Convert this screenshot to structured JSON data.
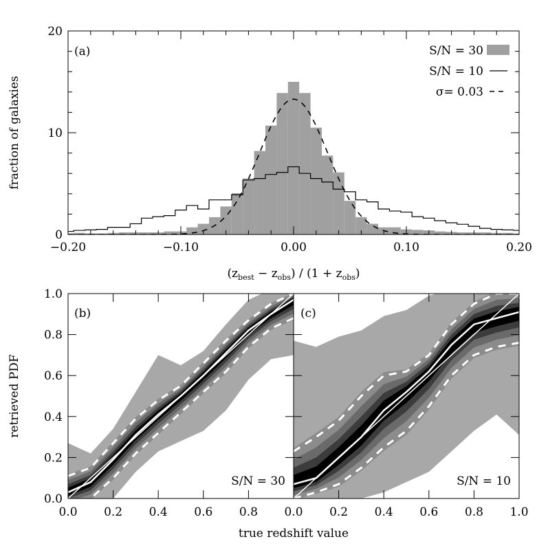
{
  "chart_data": [
    {
      "type": "bar",
      "panel_label": "(a)",
      "ylabel": "fraction of galaxies",
      "xlabel_parts": [
        "(z",
        "best",
        " − z",
        "obs",
        ") / (1 + z",
        "obs",
        ")"
      ],
      "xlim": [
        -0.2,
        0.2
      ],
      "ylim": [
        0,
        20
      ],
      "xticks": [
        "-0.20",
        "-0.10",
        "0.00",
        "0.10",
        "0.20"
      ],
      "xtick_values": [
        -0.2,
        -0.1,
        0.0,
        0.1,
        0.2
      ],
      "yticks": [
        "0",
        "10",
        "20"
      ],
      "ytick_values": [
        0,
        10,
        20
      ],
      "bin_width": 0.01,
      "bin_centers": [
        -0.2,
        -0.19,
        -0.18,
        -0.17,
        -0.16,
        -0.15,
        -0.14,
        -0.13,
        -0.12,
        -0.11,
        -0.1,
        -0.09,
        -0.08,
        -0.07,
        -0.06,
        -0.05,
        -0.04,
        -0.03,
        -0.02,
        -0.01,
        0.0,
        0.01,
        0.02,
        0.03,
        0.04,
        0.05,
        0.06,
        0.07,
        0.08,
        0.09,
        0.1,
        0.11,
        0.12,
        0.13,
        0.14,
        0.15,
        0.16,
        0.17,
        0.18,
        0.19,
        0.2
      ],
      "legend_position": "top-right",
      "series": [
        {
          "name": "S/N = 30",
          "style": "filled",
          "color": "#a0a0a0",
          "values": [
            0.1,
            0.15,
            0.1,
            0.1,
            0.15,
            0.2,
            0.2,
            0.2,
            0.2,
            0.3,
            0.3,
            0.7,
            1.05,
            1.7,
            2.75,
            4.05,
            5.5,
            8.2,
            10.7,
            13.9,
            15.0,
            13.9,
            10.5,
            7.75,
            6.1,
            3.3,
            1.7,
            1.05,
            0.7,
            0.7,
            0.5,
            0.45,
            0.4,
            0.3,
            0.25,
            0.2,
            0.2,
            0.2,
            0.15,
            0.15,
            0.1
          ]
        },
        {
          "name": "S/N = 10",
          "style": "step",
          "color": "#000000",
          "values": [
            0.3,
            0.4,
            0.45,
            0.5,
            0.7,
            0.7,
            1.05,
            1.6,
            1.75,
            1.85,
            2.4,
            2.85,
            2.5,
            3.4,
            3.4,
            3.9,
            5.35,
            5.5,
            5.9,
            6.1,
            6.65,
            6.0,
            5.5,
            5.15,
            4.45,
            4.2,
            3.4,
            3.2,
            2.5,
            2.3,
            2.2,
            1.75,
            1.6,
            1.35,
            1.15,
            1.0,
            0.8,
            0.6,
            0.5,
            0.45,
            0.4
          ]
        },
        {
          "name": "σ= 0.03",
          "style": "dashed",
          "color": "#000000",
          "gaussian_sigma": 0.03,
          "peak": 13.3
        }
      ]
    },
    {
      "type": "area",
      "panel_label": "(b)",
      "annotation": "S/N = 30",
      "ylabel": "retrieved PDF",
      "xlabel": "true redshift value",
      "xlim": [
        0,
        1
      ],
      "ylim": [
        0,
        1
      ],
      "xticks": [
        "0.0",
        "0.2",
        "0.4",
        "0.6",
        "0.8"
      ],
      "yticks": [
        "0.0",
        "0.2",
        "0.4",
        "0.6",
        "0.8",
        "1.0"
      ],
      "x": [
        0,
        0.1,
        0.2,
        0.3,
        0.4,
        0.5,
        0.6,
        0.7,
        0.8,
        0.9,
        1.0
      ],
      "outer_lo": [
        0,
        0,
        0.02,
        0.15,
        0.25,
        0.3,
        0.35,
        0.45,
        0.6,
        0.7,
        0.72
      ],
      "outer_hi": [
        0.25,
        0.2,
        0.32,
        0.5,
        0.68,
        0.63,
        0.7,
        0.83,
        0.95,
        1.0,
        1.0
      ],
      "dashed_lo": [
        -0.03,
        0.0,
        0.1,
        0.22,
        0.32,
        0.42,
        0.52,
        0.62,
        0.74,
        0.83,
        0.88
      ],
      "dashed_hi": [
        0.11,
        0.15,
        0.27,
        0.39,
        0.48,
        0.55,
        0.66,
        0.77,
        0.87,
        0.95,
        1.0
      ],
      "median": [
        0.03,
        0.08,
        0.19,
        0.31,
        0.41,
        0.5,
        0.6,
        0.71,
        0.82,
        0.9,
        0.97
      ],
      "colors": {
        "outer": "#a8a8a8",
        "band1": "#8c8c8c",
        "band2": "#6a6a6a",
        "band3": "#3c3c3c",
        "core": "#000000"
      }
    },
    {
      "type": "area",
      "panel_label": "(c)",
      "annotation": "S/N = 10",
      "xlabel": "true redshift value",
      "xlim": [
        0,
        1
      ],
      "ylim": [
        0,
        1
      ],
      "xticks": [
        "0.0",
        "0.2",
        "0.4",
        "0.6",
        "0.8",
        "1.0"
      ],
      "x": [
        0,
        0.1,
        0.2,
        0.3,
        0.4,
        0.5,
        0.6,
        0.7,
        0.8,
        0.9,
        1.0
      ],
      "outer_lo": [
        0,
        0,
        0,
        0.02,
        0.05,
        0.1,
        0.15,
        0.25,
        0.35,
        0.43,
        0.33
      ],
      "outer_hi": [
        0.75,
        0.72,
        0.77,
        0.8,
        0.87,
        0.9,
        0.97,
        1.0,
        1.0,
        1.0,
        1.0
      ],
      "dashed_lo": [
        0.0,
        0.03,
        0.07,
        0.15,
        0.25,
        0.33,
        0.45,
        0.6,
        0.7,
        0.74,
        0.76
      ],
      "dashed_hi": [
        0.23,
        0.3,
        0.38,
        0.5,
        0.6,
        0.62,
        0.7,
        0.85,
        0.95,
        1.0,
        1.0
      ],
      "median": [
        0.07,
        0.1,
        0.2,
        0.3,
        0.43,
        0.52,
        0.62,
        0.75,
        0.85,
        0.88,
        0.91
      ],
      "colors": {
        "outer": "#a8a8a8",
        "band1": "#8c8c8c",
        "band2": "#6a6a6a",
        "band3": "#3c3c3c",
        "core": "#000000"
      }
    }
  ]
}
